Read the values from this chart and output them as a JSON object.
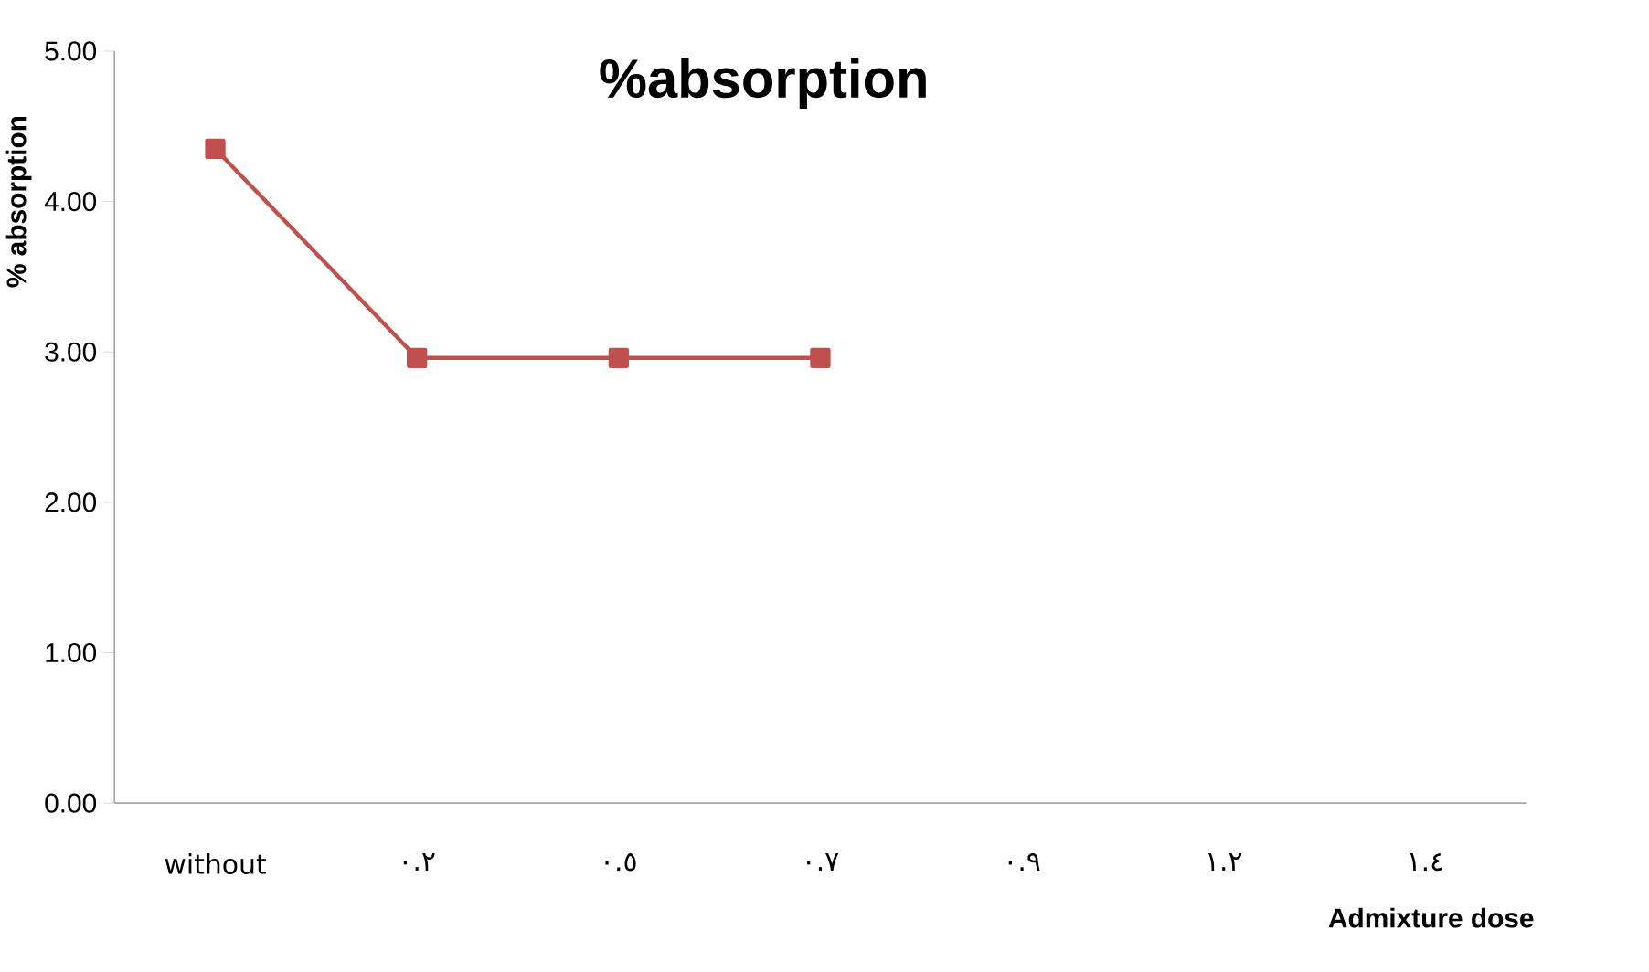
{
  "chart_data": {
    "type": "line",
    "title": "%absorption",
    "xlabel": "Admixture dose",
    "ylabel": "% absorption",
    "categories": [
      "without",
      "٠.٢",
      "٠.٥",
      "٠.٧",
      "٠.٩",
      "١.٢",
      "١.٤"
    ],
    "series": [
      {
        "color": "#c0504d",
        "values": [
          4.35,
          2.96,
          2.96,
          2.96,
          null,
          null,
          null
        ]
      }
    ],
    "marker": "square",
    "ylim": [
      0,
      5
    ],
    "yticks": [
      {
        "value": 0,
        "label": "0.00"
      },
      {
        "value": 1,
        "label": "1.00"
      },
      {
        "value": 2,
        "label": "2.00"
      },
      {
        "value": 3,
        "label": "3.00"
      },
      {
        "value": 4,
        "label": "4.00"
      },
      {
        "value": 5,
        "label": "5.00"
      }
    ]
  }
}
